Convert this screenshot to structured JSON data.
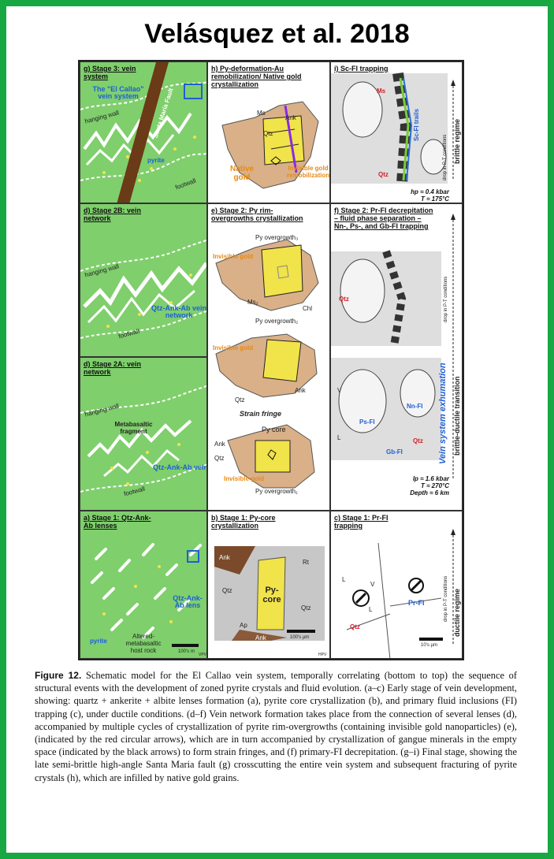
{
  "title": "Velásquez et al. 2018",
  "panels": {
    "g": {
      "label": "g) Stage 3: vein system",
      "vein_system": "The \"El Callao\" vein system",
      "fault": "Santa María Fault",
      "hanging": "hanging wall",
      "pyrite": "pyrite",
      "footwall": "footwall"
    },
    "h": {
      "label": "h) Py-deformation-Au remobilization/ Native gold crystallization",
      "ms": "Ms",
      "ank": "Ank",
      "qtz": "Qtz",
      "native_gold": "Native gold",
      "invisible": "Invisible gold remobilization"
    },
    "i": {
      "label": "i) Sc-FI trapping",
      "ms": "Ms",
      "trails": "Sc-FI trails",
      "qtz": "Qtz",
      "drop": "drop in P-T conditions",
      "conditions": "hp ≈ 0.4 kbar\nT ≈ 175°C\nDepth ≈ 4 km"
    },
    "d2b": {
      "label": "d) Stage 2B: vein network",
      "hanging": "hanging wall",
      "vein": "Qtz-Ank-Ab vein network",
      "footwall": "footwall"
    },
    "e": {
      "label": "e) Stage 2: Py rim- overgrowths crystallization",
      "overgrowth3": "Py overgrowth₃",
      "invisible_gold": "Invisible gold",
      "ms": "Ms₂",
      "chl": "Chl",
      "overgrowth2": "Py overgrowth₂",
      "invisible_gold2": "Invisible gold",
      "qtz": "Qtz",
      "ank": "Ank",
      "strain": "Strain fringe",
      "core": "Py core",
      "ank_sf": "Ank",
      "qtz_sf": "Qtz",
      "invisible_gold3": "Invisible gold",
      "overgrowth1": "Py overgrowth₁"
    },
    "f": {
      "label": "f) Stage 2: Pr-FI decrepitation – fluid phase separation – Nn-, Ps-, and Gb-FI trapping",
      "qtz": "Qtz",
      "drop": "drop in P-T conditions",
      "v": "V",
      "ps": "Ps-FI",
      "nn": "Nn-FI",
      "gb": "Gb-FI",
      "l": "L",
      "qtz2": "Qtz",
      "exhumation": "Vein system exhumation",
      "conditions": "lp ≈ 1.6 kbar\nT ≈ 270°C\nDepth ≈ 6 km"
    },
    "d2a": {
      "label": "d) Stage 2A: vein network",
      "hanging": "hanging wall",
      "fragment": "Metabasaltic fragment",
      "vein": "Qtz-Ank-Ab vein",
      "footwall": "footwall"
    },
    "a": {
      "label": "a) Stage 1: Qtz-Ank-Ab lenses",
      "lens": "Qtz-Ank-Ab lens",
      "pyrite": "pyrite",
      "host": "Altered- metabasaltic host rock",
      "scale": "100's m",
      "credit": "VPV"
    },
    "b": {
      "label": "b) Stage 1: Py-core crystallization",
      "ank": "Ank",
      "ri": "Rt",
      "qtz": "Qtz",
      "core": "Py- core",
      "qtz2": "Qtz",
      "ap": "Ap",
      "ank2": "Ank",
      "scale": "100's µm",
      "credit": "HPV"
    },
    "c": {
      "label": "c) Stage 1: Pr-FI trapping",
      "l": "L",
      "v": "V",
      "l2": "L",
      "pr": "Pr-FI",
      "qtz": "Qtz",
      "scale": "10's µm",
      "drop": "drop in P-T conditions"
    }
  },
  "side_labels": {
    "brittle": "brittle regime",
    "transition": "brittle-ductile transition",
    "ductile": "ductile regime"
  },
  "caption": {
    "label": "Figure 12.",
    "text": "Schematic model for the El Callao vein system, temporally correlating (bottom to top) the sequence of structural events with the development of zoned pyrite crystals and fluid evolution. (a–c) Early stage of vein development, showing: quartz + ankerite + albite lenses formation (a), pyrite core crystallization (b), and primary fluid inclusions (FI) trapping (c), under ductile conditions. (d–f) Vein network formation takes place from the connection of several lenses (d), accompanied by multiple cycles of crystallization of pyrite rim-overgrowths (containing invisible gold nanoparticles) (e), (indicated by the red circular arrows), which are in turn accompanied by crystallization of gangue minerals in the empty space (indicated by the black arrows) to form strain fringes, and (f) primary-FI decrepitation. (g–i) Final stage, showing the late semi-brittle high-angle Santa Maria fault (g) crosscutting the entire vein system and subsequent fracturing of pyrite crystals (h), which are infilled by native gold grains."
  },
  "colors": {
    "frame": "#17a844",
    "green": "#7fcf6c",
    "blue": "#1f5fd6",
    "gold": "#f1e34a",
    "orange": "#e88a12",
    "brown": "#6b3a16"
  }
}
